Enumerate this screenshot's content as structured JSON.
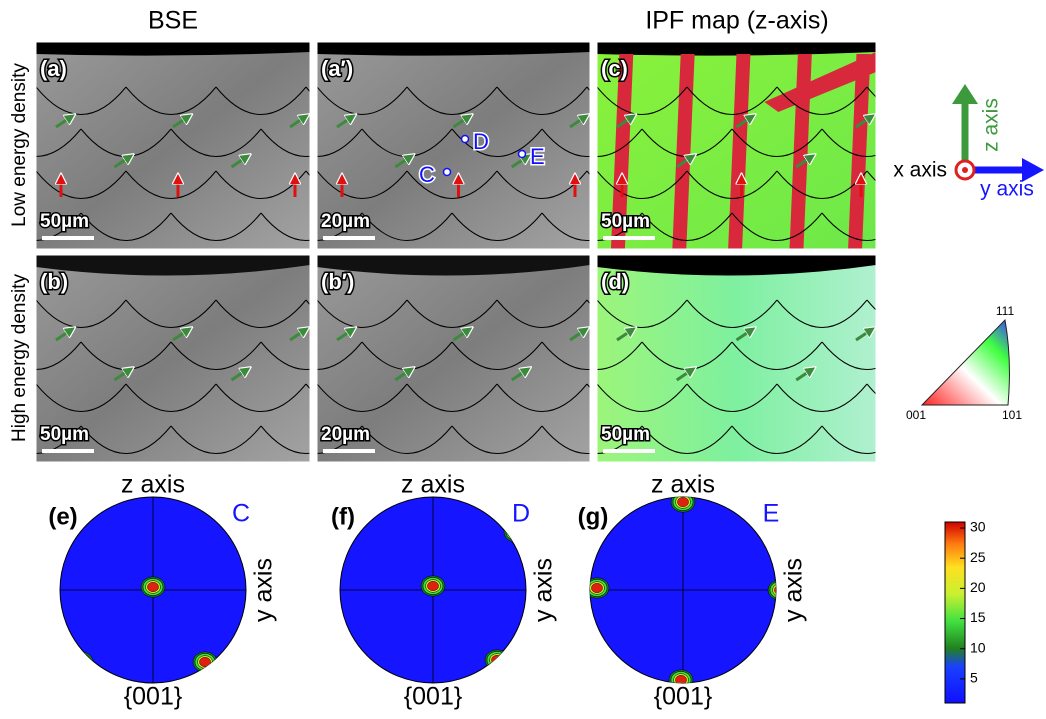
{
  "column_headers": [
    "BSE",
    "IPF map (z-axis)"
  ],
  "row_labels": [
    "Low energy density",
    "High energy density"
  ],
  "panels": [
    {
      "label": "(a)",
      "scale_bar": "50µm"
    },
    {
      "label": "(a′)",
      "scale_bar": "20µm",
      "points": [
        "C",
        "D",
        "E"
      ]
    },
    {
      "label": "(c)",
      "scale_bar": "50µm"
    },
    {
      "label": "(b)",
      "scale_bar": "50µm"
    },
    {
      "label": "(b′)",
      "scale_bar": "20µm"
    },
    {
      "label": "(d)",
      "scale_bar": "50µm"
    }
  ],
  "axis_triad": {
    "z": "z axis",
    "x": "x axis",
    "y": "y axis"
  },
  "ipf_triangle": {
    "top": "111",
    "left": "001",
    "right": "101"
  },
  "pole_figures": [
    {
      "label": "(e)",
      "top": "z axis",
      "side": "y axis",
      "bottom": "{001}",
      "point": "C"
    },
    {
      "label": "(f)",
      "top": "z axis",
      "side": "y axis",
      "bottom": "{001}",
      "point": "D"
    },
    {
      "label": "(g)",
      "top": "z axis",
      "side": "y axis",
      "bottom": "{001}",
      "point": "E"
    }
  ],
  "colorbar": {
    "range": [
      1,
      31
    ],
    "ticks": [
      5,
      10,
      15,
      20,
      25,
      30
    ]
  }
}
